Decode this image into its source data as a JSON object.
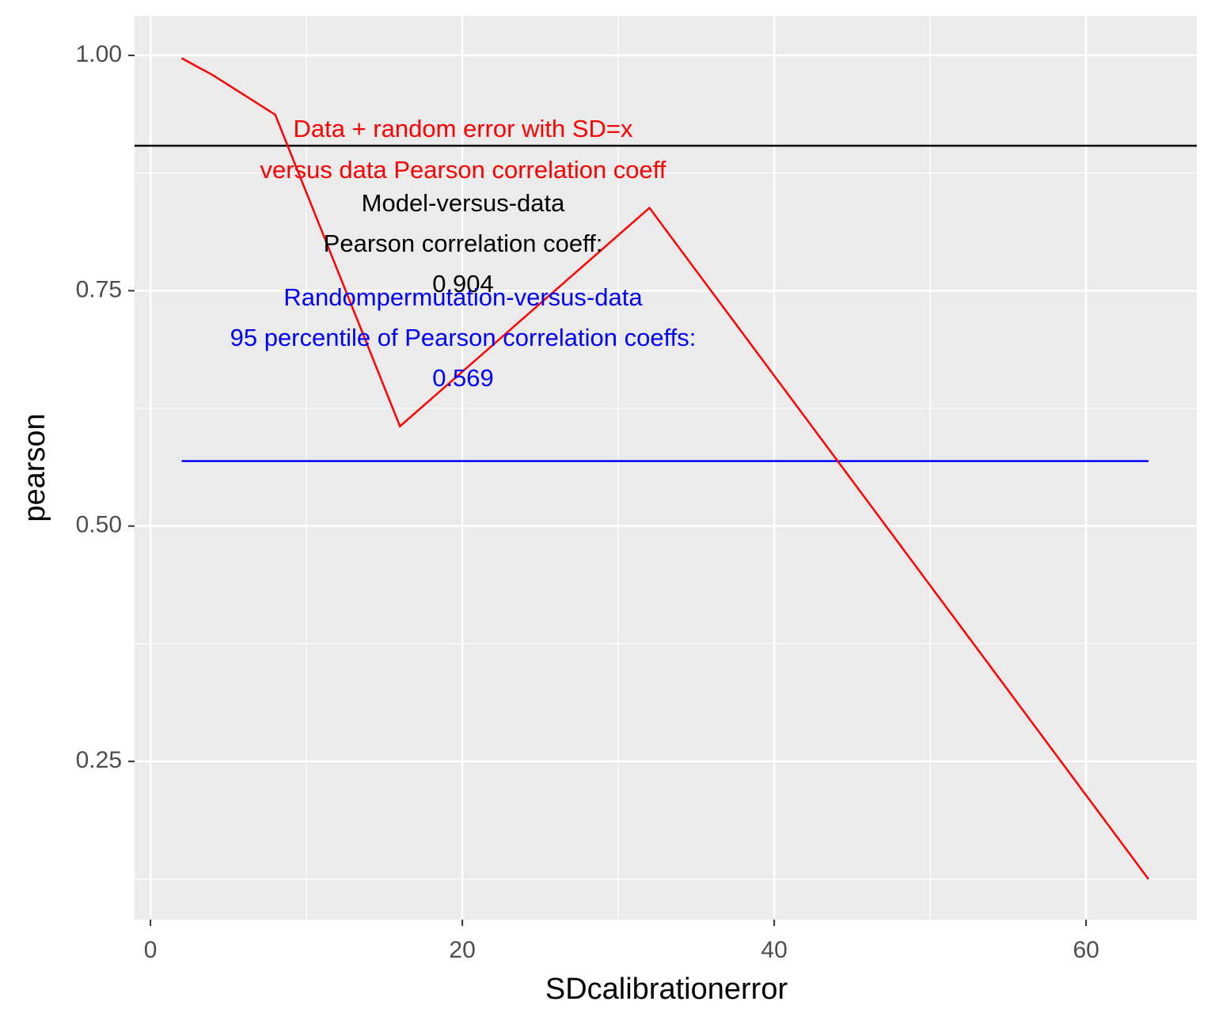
{
  "chart_data": {
    "type": "line",
    "x_label": "SDcalibrationerror",
    "y_label": "pearson",
    "x": [
      2,
      4,
      8,
      16,
      32,
      64
    ],
    "series": [
      {
        "color": "#ff0000",
        "values": [
          0.997,
          0.979,
          0.937,
          0.606,
          0.838,
          0.125
        ]
      }
    ],
    "hlines": [
      {
        "value": 0.904,
        "color": "#000000"
      },
      {
        "value": 0.569,
        "color": "#0000ff",
        "xrange": [
          2,
          64
        ]
      }
    ],
    "annotations": [
      {
        "color": "#ff0000",
        "lines": [
          "Data + random error with SD=x",
          "versus data Pearson correlation coeff"
        ]
      },
      {
        "color": "#000000",
        "lines": [
          "Model-versus-data",
          "Pearson correlation coeff:",
          "0.904"
        ]
      },
      {
        "color": "#0000ff",
        "lines": [
          "Randompermutation-versus-data",
          "95 percentile of Pearson correlation coeffs:",
          "0.569"
        ]
      }
    ],
    "xlim": [
      -1.02,
      67.1
    ],
    "ylim": [
      0.082,
      1.042
    ],
    "xticks": [
      0,
      20,
      40,
      60
    ],
    "yticks": [
      {
        "value": 0.25,
        "label": "0.25"
      },
      {
        "value": 0.5,
        "label": "0.50"
      },
      {
        "value": 0.75,
        "label": "0.75"
      },
      {
        "value": 1.0,
        "label": "1.00"
      }
    ],
    "grid": true
  }
}
